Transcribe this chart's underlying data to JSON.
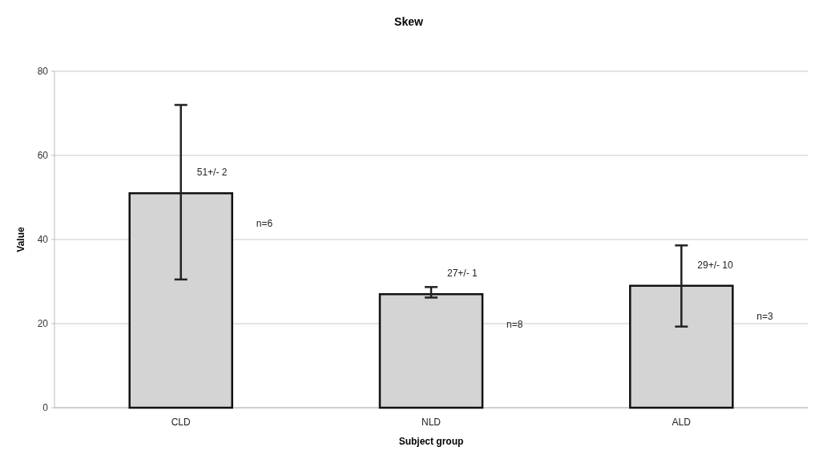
{
  "chart_data": {
    "type": "bar",
    "title": "Skew",
    "xlabel": "Subject group",
    "ylabel": "Value",
    "categories": [
      "CLD",
      "NLD",
      "ALD"
    ],
    "values": [
      51,
      27,
      29
    ],
    "color": "#d4d4d4",
    "errors": [
      [
        30.5,
        72
      ],
      [
        26.2,
        28.7
      ],
      [
        19.3,
        38.6
      ]
    ],
    "value_labels": [
      "51+/- 2",
      "27+/- 1",
      "29+/- 10"
    ],
    "annotations": [
      "n=6",
      "n=8",
      "n=3"
    ],
    "ylim": [
      0,
      80
    ],
    "yticks": [
      0,
      20,
      40,
      60,
      80
    ],
    "grid": "y"
  }
}
